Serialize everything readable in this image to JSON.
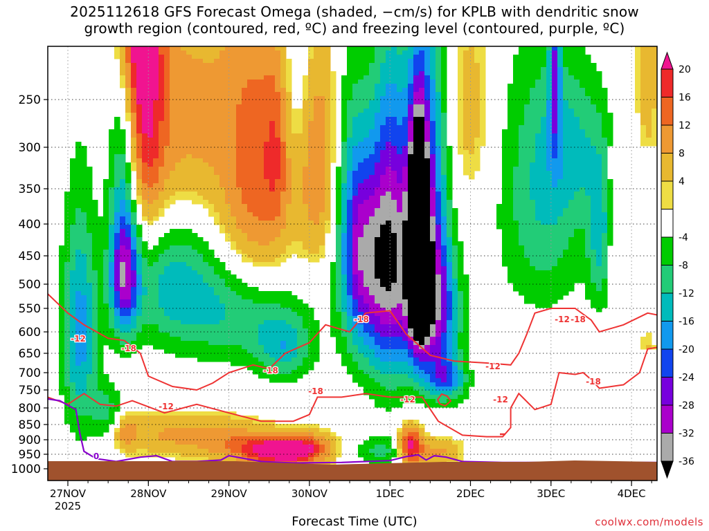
{
  "title_line1": "2025112618 GFS Forecast Omega (shaded, −cm/s) for KPLB with dendritic snow",
  "title_line2": "growth region (contoured, red, ºC) and freezing level (contoured, purple, ºC)",
  "xlabel": "Forecast Time (UTC)",
  "credit": "coolwx.com/models",
  "colors": {
    "ground": "#a0522d",
    "dgz_contour": "#ee3333",
    "freezing_contour": "#8800cc",
    "grid": "#000000"
  },
  "chart_data": {
    "type": "heatmap",
    "y_axis": {
      "label": "",
      "ticks": [
        250,
        300,
        350,
        400,
        450,
        500,
        550,
        600,
        650,
        700,
        750,
        800,
        850,
        900,
        950,
        1000
      ],
      "range": [
        200,
        1020
      ]
    },
    "x_axis": {
      "label": "Forecast Time (UTC)",
      "ticks": [
        "27NOV",
        "28NOV",
        "29NOV",
        "30NOV",
        "1DEC",
        "2DEC",
        "3DEC",
        "4DEC"
      ],
      "tick_sublabel": "2025",
      "range_days": [
        -0.25,
        7.35
      ]
    },
    "colorbar": {
      "labels": [
        20,
        16,
        12,
        8,
        4,
        -4,
        -8,
        -12,
        -16,
        -20,
        -24,
        -28,
        -32,
        -36
      ],
      "colors": [
        "#f01490",
        "#ee2a2a",
        "#ee6622",
        "#ee9933",
        "#e8b830",
        "#eedd44",
        "#ffffff",
        "#00cc00",
        "#22cc77",
        "#00bbbb",
        "#1199ee",
        "#1144ee",
        "#7700dd",
        "#aa00cc",
        "#aaaaaa",
        "#000000"
      ]
    },
    "dgz_contour_labels": [
      "-12",
      "-18",
      "-18",
      "-18",
      "-12",
      "-18",
      "-12",
      "-12",
      "-18",
      "-12",
      "-18",
      "-12"
    ],
    "freezing_contour_labels": [
      "0"
    ],
    "series": [
      {
        "name": "-12",
        "points": [
          [
            -0.25,
            770
          ],
          [
            0.0,
            790
          ],
          [
            0.2,
            760
          ],
          [
            0.4,
            790
          ],
          [
            0.6,
            795
          ],
          [
            0.8,
            780
          ],
          [
            1.2,
            815
          ],
          [
            1.6,
            790
          ],
          [
            2.0,
            815
          ],
          [
            2.4,
            840
          ],
          [
            2.8,
            840
          ],
          [
            3.0,
            820
          ],
          [
            3.1,
            770
          ],
          [
            3.4,
            770
          ],
          [
            3.7,
            760
          ],
          [
            4.0,
            770
          ],
          [
            4.4,
            770
          ],
          [
            4.6,
            840
          ],
          [
            4.9,
            885
          ],
          [
            5.2,
            890
          ],
          [
            5.4,
            890
          ],
          [
            5.5,
            860
          ],
          [
            5.5,
            800
          ],
          [
            5.6,
            760
          ],
          [
            5.8,
            805
          ],
          [
            6.0,
            790
          ],
          [
            6.1,
            700
          ],
          [
            6.3,
            705
          ],
          [
            6.4,
            700
          ],
          [
            6.5,
            720
          ],
          [
            6.6,
            745
          ],
          [
            6.9,
            735
          ],
          [
            7.1,
            700
          ],
          [
            7.2,
            640
          ],
          [
            7.35,
            635
          ]
        ]
      },
      {
        "name": "-18",
        "points": [
          [
            -0.25,
            520
          ],
          [
            0.0,
            560
          ],
          [
            0.2,
            585
          ],
          [
            0.5,
            615
          ],
          [
            0.7,
            620
          ],
          [
            0.9,
            650
          ],
          [
            1.0,
            710
          ],
          [
            1.3,
            740
          ],
          [
            1.6,
            750
          ],
          [
            1.8,
            730
          ],
          [
            2.0,
            700
          ],
          [
            2.3,
            680
          ],
          [
            2.5,
            690
          ],
          [
            2.7,
            650
          ],
          [
            3.0,
            625
          ],
          [
            3.2,
            585
          ],
          [
            3.5,
            600
          ],
          [
            3.7,
            560
          ],
          [
            4.0,
            555
          ],
          [
            4.2,
            605
          ],
          [
            4.5,
            655
          ],
          [
            4.8,
            670
          ],
          [
            5.2,
            675
          ],
          [
            5.5,
            680
          ],
          [
            5.6,
            650
          ],
          [
            5.7,
            605
          ],
          [
            5.8,
            560
          ],
          [
            6.0,
            550
          ],
          [
            6.3,
            550
          ],
          [
            6.5,
            575
          ],
          [
            6.6,
            600
          ],
          [
            6.9,
            585
          ],
          [
            7.2,
            560
          ],
          [
            7.35,
            565
          ]
        ]
      },
      {
        "name": "0",
        "points": [
          [
            -0.25,
            775
          ],
          [
            -0.1,
            780
          ],
          [
            0.1,
            805
          ],
          [
            0.15,
            880
          ],
          [
            0.2,
            940
          ],
          [
            0.35,
            965
          ],
          [
            0.6,
            975
          ],
          [
            0.9,
            960
          ],
          [
            1.1,
            955
          ],
          [
            1.3,
            975
          ],
          [
            1.6,
            975
          ],
          [
            1.9,
            970
          ],
          [
            2.0,
            955
          ],
          [
            2.1,
            960
          ],
          [
            2.4,
            975
          ],
          [
            2.8,
            980
          ],
          [
            3.4,
            978
          ],
          [
            4.0,
            972
          ],
          [
            4.2,
            958
          ],
          [
            4.35,
            952
          ],
          [
            4.45,
            970
          ],
          [
            4.55,
            955
          ],
          [
            4.7,
            960
          ],
          [
            4.9,
            975
          ],
          [
            5.4,
            978
          ],
          [
            6.0,
            978
          ],
          [
            6.6,
            978
          ],
          [
            7.35,
            978
          ]
        ]
      }
    ]
  }
}
